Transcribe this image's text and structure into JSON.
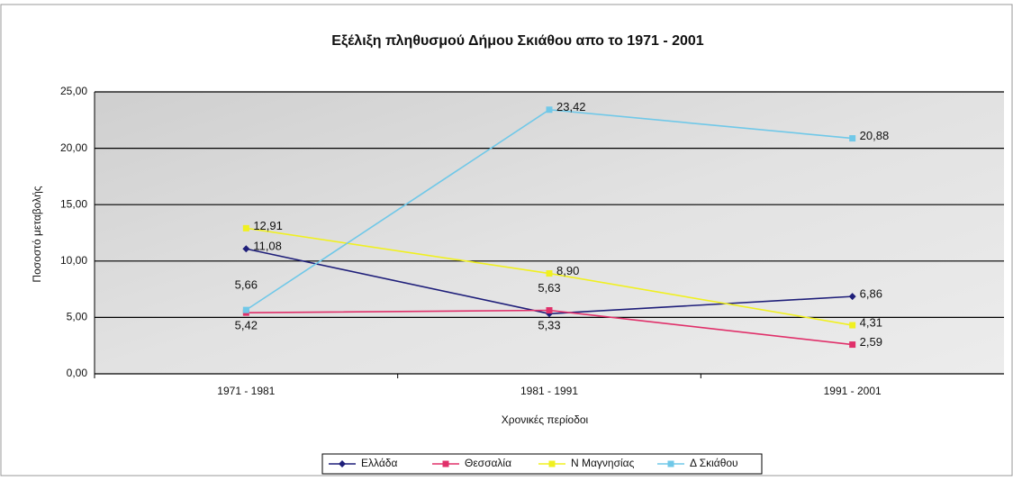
{
  "chart_data": {
    "type": "line",
    "title": "Εξέλιξη πληθυσμού Δήμου Σκιάθου απο το 1971 - 2001",
    "x_label": "Χρονικές περίοδοι",
    "y_label": "Ποσοστό μεταβολής",
    "categories": [
      "1971 - 1981",
      "1981 - 1991",
      "1991 - 2001"
    ],
    "series": [
      {
        "name": "Ελλάδα",
        "color": "#1f1f7a",
        "values": [
          11.08,
          5.33,
          6.86
        ],
        "value_labels": [
          "11,08",
          "5,33",
          "6,86"
        ]
      },
      {
        "name": "Θεσσαλία",
        "color": "#e0306a",
        "values": [
          5.42,
          5.63,
          2.59
        ],
        "value_labels": [
          "5,42",
          "5,63",
          "2,59"
        ]
      },
      {
        "name": "Ν Μαγνησίας",
        "color": "#f0f020",
        "values": [
          12.91,
          8.9,
          4.31
        ],
        "value_labels": [
          "12,91",
          "8,90",
          "4,31"
        ]
      },
      {
        "name": "Δ Σκιάθου",
        "color": "#70c8e8",
        "values": [
          5.66,
          23.42,
          20.88
        ],
        "value_labels": [
          "5,66",
          "23,42",
          "20,88"
        ]
      }
    ],
    "ylim": [
      0,
      25
    ],
    "yticks": [
      {
        "value": 0,
        "label": "0,00"
      },
      {
        "value": 5,
        "label": "5,00"
      },
      {
        "value": 10,
        "label": "10,00"
      },
      {
        "value": 15,
        "label": "15,00"
      },
      {
        "value": 20,
        "label": "20,00"
      },
      {
        "value": 25,
        "label": "25,00"
      }
    ],
    "grid": true,
    "legend": "bottom"
  }
}
